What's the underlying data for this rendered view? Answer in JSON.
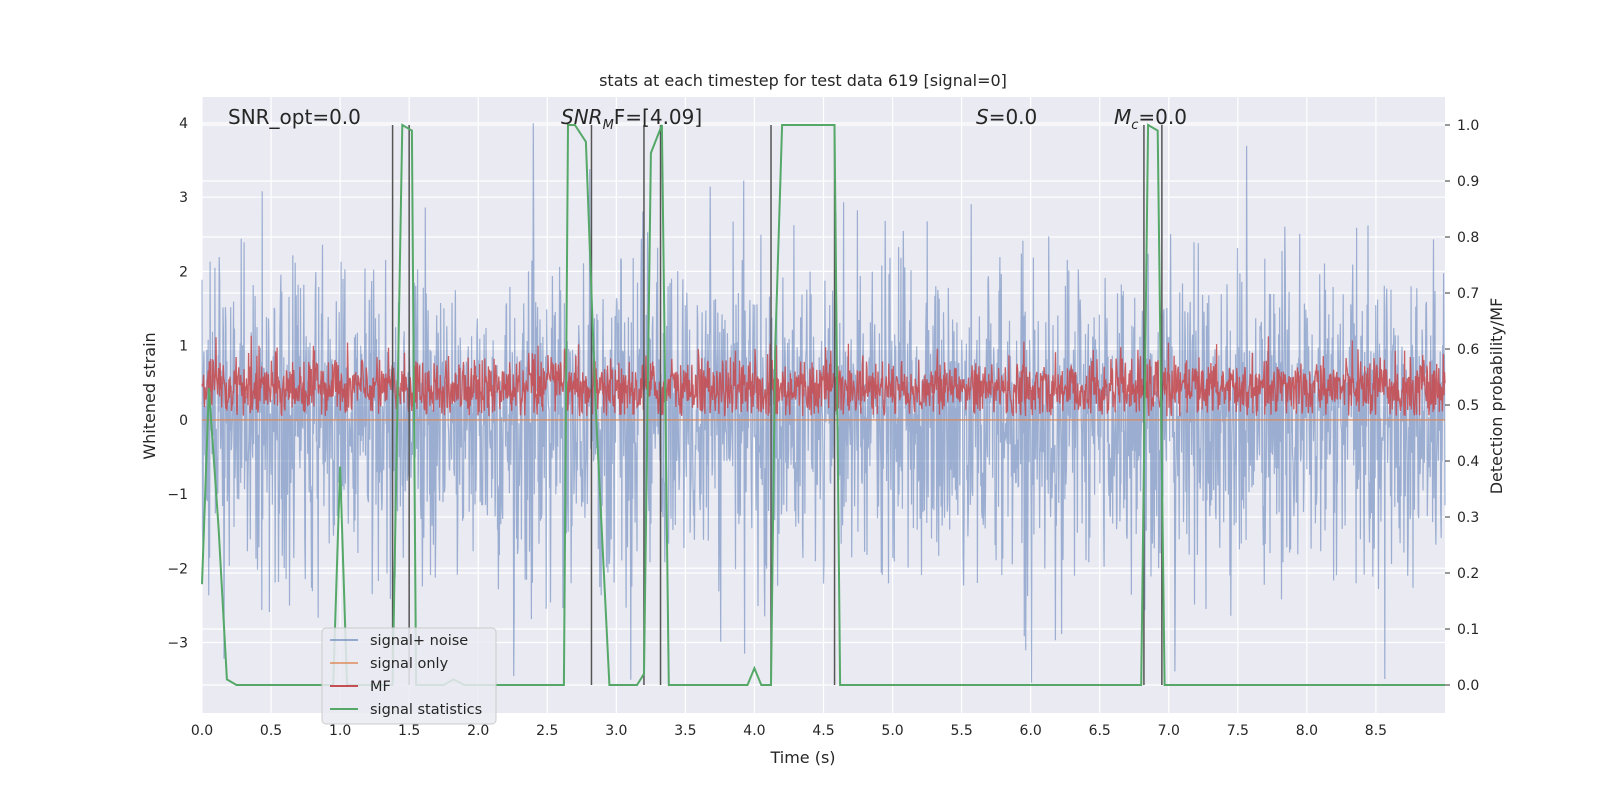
{
  "chart_data": {
    "type": "line",
    "title": "stats at each timestep for test data 619 [signal=0]",
    "xlabel": "Time (s)",
    "ylabel_left": "Whitened strain",
    "ylabel_right": "Detection probability/MF",
    "xlim": [
      0.0,
      9.0
    ],
    "ylim_left": [
      -3.95,
      4.35
    ],
    "ylim_right": [
      -0.05,
      1.05
    ],
    "xticks": [
      "0.0",
      "0.5",
      "1.0",
      "1.5",
      "2.0",
      "2.5",
      "3.0",
      "3.5",
      "4.0",
      "4.5",
      "5.0",
      "5.5",
      "6.0",
      "6.5",
      "7.0",
      "7.5",
      "8.0",
      "8.5"
    ],
    "yticks_left": [
      "−3",
      "−2",
      "−1",
      "0",
      "1",
      "2",
      "3",
      "4"
    ],
    "yticks_right": [
      "0.0",
      "0.1",
      "0.2",
      "0.3",
      "0.4",
      "0.5",
      "0.6",
      "0.7",
      "0.8",
      "0.9",
      "1.0"
    ],
    "grid": true,
    "legend_position": "lower-left",
    "annotations": {
      "snr_opt": "SNR_opt=0.0",
      "snr_mf_base": "SNR",
      "snr_mf_sub": "M",
      "snr_mf_rest": "F=[4.09]",
      "s_italic": "S",
      "s_rest": "=0.0",
      "mc_base": "M",
      "mc_sub": "c",
      "mc_rest": "=0.0"
    },
    "colors": {
      "noise": "#4c72b0",
      "signal_only": "#dd8452",
      "mf": "#c44e52",
      "stats": "#55a868",
      "vline": "#555555",
      "background": "#eaeaf2"
    },
    "series": [
      {
        "name": "signal+ noise",
        "axis": "left",
        "description_of_values": "whitened strain noise, approx range -3.6 to 4.0",
        "envelope": {
          "mean": 0.0,
          "std": 1.05,
          "max": 4.0,
          "min": -3.6
        }
      },
      {
        "name": "signal only",
        "axis": "left",
        "x": [
          0.0,
          9.0
        ],
        "y": [
          0.0,
          0.0
        ]
      },
      {
        "name": "MF",
        "axis": "right",
        "envelope": {
          "min": 0.48,
          "max": 0.63,
          "typical": 0.53
        }
      },
      {
        "name": "signal statistics",
        "axis": "right",
        "x": [
          0.0,
          0.05,
          0.12,
          0.18,
          0.25,
          0.95,
          1.0,
          1.05,
          1.35,
          1.38,
          1.45,
          1.52,
          1.55,
          1.75,
          1.82,
          1.9,
          2.62,
          2.65,
          2.7,
          2.78,
          2.85,
          2.95,
          3.15,
          3.2,
          3.25,
          3.33,
          3.38,
          3.95,
          4.0,
          4.05,
          4.12,
          4.15,
          4.2,
          4.58,
          4.62,
          6.8,
          6.85,
          6.92,
          6.97,
          7.02,
          9.0
        ],
        "y": [
          0.18,
          0.53,
          0.28,
          0.01,
          0.0,
          0.0,
          0.39,
          0.0,
          0.0,
          0.0,
          1.0,
          0.99,
          0.0,
          0.0,
          0.01,
          0.0,
          0.0,
          1.0,
          1.0,
          0.97,
          0.5,
          0.0,
          0.0,
          0.02,
          0.95,
          1.0,
          0.0,
          0.0,
          0.03,
          0.0,
          0.0,
          0.6,
          1.0,
          1.0,
          0.0,
          0.0,
          1.0,
          0.99,
          0.0,
          0.0,
          0.0
        ]
      }
    ],
    "vlines": [
      1.38,
      1.5,
      2.82,
      3.2,
      3.32,
      4.12,
      4.58,
      6.82,
      6.95
    ]
  },
  "legend": {
    "items": [
      {
        "label": "signal+ noise"
      },
      {
        "label": "signal only"
      },
      {
        "label": "MF"
      },
      {
        "label": "signal statistics"
      }
    ]
  }
}
